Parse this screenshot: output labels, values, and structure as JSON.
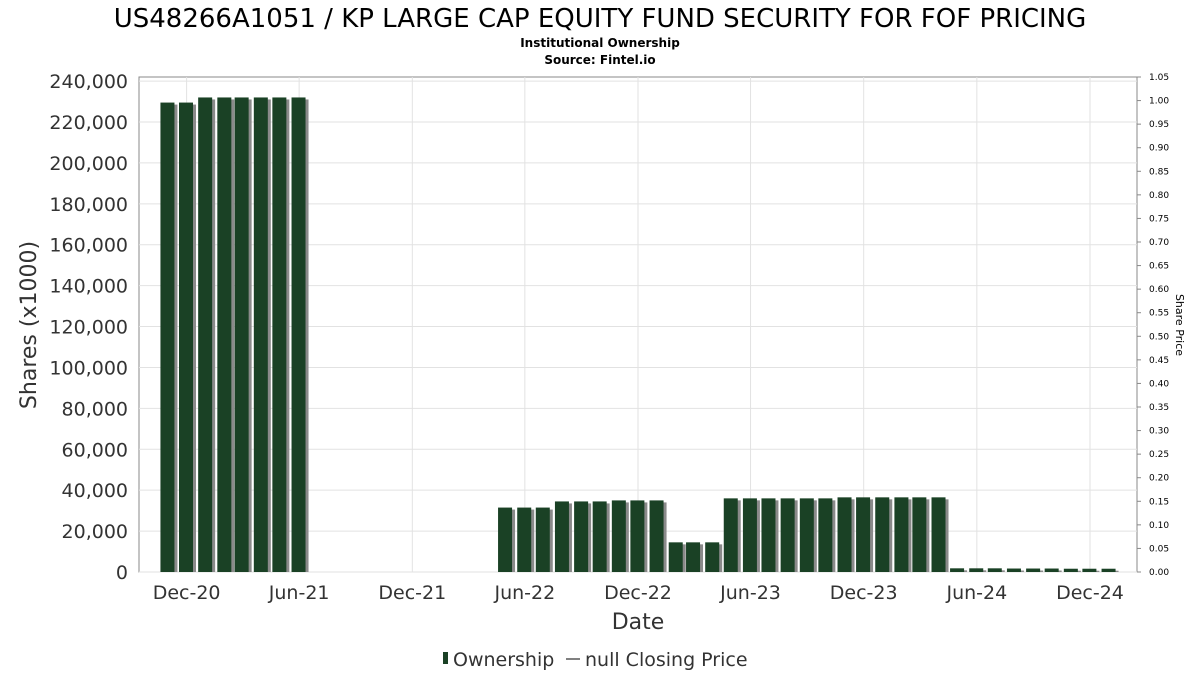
{
  "chart_data": {
    "type": "bar",
    "title": "US48266A1051 / KP LARGE CAP EQUITY FUND SECURITY FOR FOF PRICING",
    "subtitle_lines": [
      "Institutional Ownership",
      "Source: Fintel.io"
    ],
    "xlabel": "Date",
    "ylabel": "Shares (x1000)",
    "y2label": "Share Price",
    "x_tick_labels": [
      "Dec-20",
      "Jun-21",
      "Dec-21",
      "Jun-22",
      "Dec-22",
      "Jun-23",
      "Dec-23",
      "Jun-24",
      "Dec-24"
    ],
    "y_tick_labels": [
      "0",
      "20,000",
      "40,000",
      "60,000",
      "80,000",
      "100,000",
      "120,000",
      "140,000",
      "160,000",
      "180,000",
      "200,000",
      "220,000",
      "240,000"
    ],
    "y2_tick_labels": [
      "0.00",
      "0.05",
      "0.10",
      "0.15",
      "0.20",
      "0.25",
      "0.30",
      "0.35",
      "0.40",
      "0.45",
      "0.50",
      "0.55",
      "0.60",
      "0.65",
      "0.70",
      "0.75",
      "0.80",
      "0.85",
      "0.90",
      "0.95",
      "1.00",
      "1.05"
    ],
    "ylim": [
      0,
      242000
    ],
    "y2lim": [
      0,
      1.05
    ],
    "grid": true,
    "legend_position": "bottom-center",
    "bar_color": "#1a4125",
    "bar_shadow_color": "#8a8a8a",
    "series": [
      {
        "name": "Ownership",
        "values": [
          {
            "date": "2020-10-31",
            "value": 229500
          },
          {
            "date": "2020-11-30",
            "value": 229500
          },
          {
            "date": "2020-12-31",
            "value": 232000
          },
          {
            "date": "2021-01-31",
            "value": 232000
          },
          {
            "date": "2021-02-28",
            "value": 232000
          },
          {
            "date": "2021-03-31",
            "value": 232000
          },
          {
            "date": "2021-04-30",
            "value": 232000
          },
          {
            "date": "2021-05-31",
            "value": 232000
          },
          {
            "date": "2022-04-30",
            "value": 31500
          },
          {
            "date": "2022-05-31",
            "value": 31500
          },
          {
            "date": "2022-06-30",
            "value": 31500
          },
          {
            "date": "2022-07-31",
            "value": 34500
          },
          {
            "date": "2022-08-31",
            "value": 34500
          },
          {
            "date": "2022-09-30",
            "value": 34500
          },
          {
            "date": "2022-10-31",
            "value": 35000
          },
          {
            "date": "2022-11-30",
            "value": 35000
          },
          {
            "date": "2022-12-31",
            "value": 35000
          },
          {
            "date": "2023-01-31",
            "value": 14500
          },
          {
            "date": "2023-02-28",
            "value": 14500
          },
          {
            "date": "2023-03-31",
            "value": 14500
          },
          {
            "date": "2023-04-30",
            "value": 36000
          },
          {
            "date": "2023-05-31",
            "value": 36000
          },
          {
            "date": "2023-06-30",
            "value": 36000
          },
          {
            "date": "2023-07-31",
            "value": 36000
          },
          {
            "date": "2023-08-31",
            "value": 36000
          },
          {
            "date": "2023-09-30",
            "value": 36000
          },
          {
            "date": "2023-10-31",
            "value": 36500
          },
          {
            "date": "2023-11-30",
            "value": 36500
          },
          {
            "date": "2023-12-31",
            "value": 36500
          },
          {
            "date": "2024-01-31",
            "value": 36500
          },
          {
            "date": "2024-02-29",
            "value": 36500
          },
          {
            "date": "2024-03-31",
            "value": 36500
          },
          {
            "date": "2024-04-30",
            "value": 1800
          },
          {
            "date": "2024-05-31",
            "value": 1800
          },
          {
            "date": "2024-06-30",
            "value": 1800
          },
          {
            "date": "2024-07-31",
            "value": 1700
          },
          {
            "date": "2024-08-31",
            "value": 1700
          },
          {
            "date": "2024-09-30",
            "value": 1700
          },
          {
            "date": "2024-10-31",
            "value": 1600
          },
          {
            "date": "2024-11-30",
            "value": 1600
          },
          {
            "date": "2024-12-31",
            "value": 1600
          }
        ]
      },
      {
        "name": "null Closing Price",
        "values": []
      }
    ],
    "legend": [
      {
        "label": "Ownership",
        "symbol": "bar"
      },
      {
        "label": "null Closing Price",
        "symbol": "line"
      }
    ]
  }
}
